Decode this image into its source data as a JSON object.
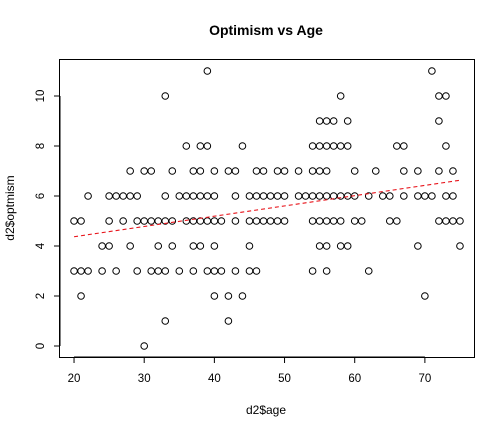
{
  "chart_data": {
    "type": "scatter",
    "title": "Optimism vs Age",
    "xlabel": "d2$age",
    "ylabel": "d2$optmism",
    "xlim": [
      18,
      77
    ],
    "ylim": [
      -0.44,
      11.44
    ],
    "x_ticks": [
      20,
      30,
      40,
      50,
      60,
      70
    ],
    "y_ticks": [
      0,
      2,
      4,
      6,
      8,
      10
    ],
    "grid": false,
    "legend": "none",
    "point_style": "open-circle",
    "point_color": "#000000",
    "points": [
      {
        "x": 20,
        "y": 3
      },
      {
        "x": 20,
        "y": 5
      },
      {
        "x": 21,
        "y": 2
      },
      {
        "x": 21,
        "y": 3
      },
      {
        "x": 21,
        "y": 5
      },
      {
        "x": 22,
        "y": 3
      },
      {
        "x": 22,
        "y": 6
      },
      {
        "x": 24,
        "y": 3
      },
      {
        "x": 24,
        "y": 4
      },
      {
        "x": 25,
        "y": 4
      },
      {
        "x": 25,
        "y": 5
      },
      {
        "x": 25,
        "y": 6
      },
      {
        "x": 26,
        "y": 3
      },
      {
        "x": 26,
        "y": 6
      },
      {
        "x": 27,
        "y": 5
      },
      {
        "x": 27,
        "y": 6
      },
      {
        "x": 28,
        "y": 4
      },
      {
        "x": 28,
        "y": 6
      },
      {
        "x": 28,
        "y": 7
      },
      {
        "x": 29,
        "y": 3
      },
      {
        "x": 29,
        "y": 5
      },
      {
        "x": 29,
        "y": 6
      },
      {
        "x": 30,
        "y": 0
      },
      {
        "x": 30,
        "y": 5
      },
      {
        "x": 30,
        "y": 7
      },
      {
        "x": 31,
        "y": 3
      },
      {
        "x": 31,
        "y": 5
      },
      {
        "x": 31,
        "y": 7
      },
      {
        "x": 32,
        "y": 3
      },
      {
        "x": 32,
        "y": 4
      },
      {
        "x": 32,
        "y": 5
      },
      {
        "x": 33,
        "y": 1
      },
      {
        "x": 33,
        "y": 10
      },
      {
        "x": 33,
        "y": 3
      },
      {
        "x": 33,
        "y": 5
      },
      {
        "x": 33,
        "y": 6
      },
      {
        "x": 34,
        "y": 4
      },
      {
        "x": 34,
        "y": 5
      },
      {
        "x": 34,
        "y": 7
      },
      {
        "x": 35,
        "y": 3
      },
      {
        "x": 35,
        "y": 6
      },
      {
        "x": 36,
        "y": 5
      },
      {
        "x": 36,
        "y": 6
      },
      {
        "x": 36,
        "y": 8
      },
      {
        "x": 37,
        "y": 3
      },
      {
        "x": 37,
        "y": 4
      },
      {
        "x": 37,
        "y": 5
      },
      {
        "x": 37,
        "y": 6
      },
      {
        "x": 37,
        "y": 7
      },
      {
        "x": 38,
        "y": 4
      },
      {
        "x": 38,
        "y": 5
      },
      {
        "x": 38,
        "y": 6
      },
      {
        "x": 38,
        "y": 7
      },
      {
        "x": 38,
        "y": 8
      },
      {
        "x": 39,
        "y": 11
      },
      {
        "x": 39,
        "y": 3
      },
      {
        "x": 39,
        "y": 5
      },
      {
        "x": 39,
        "y": 6
      },
      {
        "x": 39,
        "y": 8
      },
      {
        "x": 40,
        "y": 2
      },
      {
        "x": 40,
        "y": 3
      },
      {
        "x": 40,
        "y": 4
      },
      {
        "x": 40,
        "y": 5
      },
      {
        "x": 40,
        "y": 6
      },
      {
        "x": 40,
        "y": 7
      },
      {
        "x": 41,
        "y": 3
      },
      {
        "x": 41,
        "y": 5
      },
      {
        "x": 42,
        "y": 1
      },
      {
        "x": 42,
        "y": 2
      },
      {
        "x": 42,
        "y": 7
      },
      {
        "x": 43,
        "y": 3
      },
      {
        "x": 43,
        "y": 5
      },
      {
        "x": 43,
        "y": 6
      },
      {
        "x": 43,
        "y": 7
      },
      {
        "x": 44,
        "y": 2
      },
      {
        "x": 44,
        "y": 8
      },
      {
        "x": 45,
        "y": 3
      },
      {
        "x": 45,
        "y": 4
      },
      {
        "x": 45,
        "y": 5
      },
      {
        "x": 45,
        "y": 6
      },
      {
        "x": 46,
        "y": 3
      },
      {
        "x": 46,
        "y": 5
      },
      {
        "x": 46,
        "y": 6
      },
      {
        "x": 46,
        "y": 7
      },
      {
        "x": 47,
        "y": 5
      },
      {
        "x": 47,
        "y": 6
      },
      {
        "x": 47,
        "y": 7
      },
      {
        "x": 48,
        "y": 5
      },
      {
        "x": 48,
        "y": 6
      },
      {
        "x": 49,
        "y": 5
      },
      {
        "x": 49,
        "y": 6
      },
      {
        "x": 49,
        "y": 7
      },
      {
        "x": 50,
        "y": 5
      },
      {
        "x": 50,
        "y": 6
      },
      {
        "x": 50,
        "y": 7
      },
      {
        "x": 52,
        "y": 6
      },
      {
        "x": 52,
        "y": 7
      },
      {
        "x": 53,
        "y": 6
      },
      {
        "x": 54,
        "y": 3
      },
      {
        "x": 54,
        "y": 5
      },
      {
        "x": 54,
        "y": 6
      },
      {
        "x": 54,
        "y": 7
      },
      {
        "x": 54,
        "y": 8
      },
      {
        "x": 55,
        "y": 4
      },
      {
        "x": 55,
        "y": 5
      },
      {
        "x": 55,
        "y": 6
      },
      {
        "x": 55,
        "y": 7
      },
      {
        "x": 55,
        "y": 8
      },
      {
        "x": 55,
        "y": 9
      },
      {
        "x": 56,
        "y": 3
      },
      {
        "x": 56,
        "y": 4
      },
      {
        "x": 56,
        "y": 5
      },
      {
        "x": 56,
        "y": 6
      },
      {
        "x": 56,
        "y": 7
      },
      {
        "x": 56,
        "y": 8
      },
      {
        "x": 56,
        "y": 9
      },
      {
        "x": 57,
        "y": 5
      },
      {
        "x": 57,
        "y": 6
      },
      {
        "x": 57,
        "y": 8
      },
      {
        "x": 57,
        "y": 9
      },
      {
        "x": 58,
        "y": 4
      },
      {
        "x": 58,
        "y": 5
      },
      {
        "x": 58,
        "y": 6
      },
      {
        "x": 58,
        "y": 8
      },
      {
        "x": 58,
        "y": 10
      },
      {
        "x": 59,
        "y": 4
      },
      {
        "x": 59,
        "y": 6
      },
      {
        "x": 59,
        "y": 8
      },
      {
        "x": 59,
        "y": 9
      },
      {
        "x": 60,
        "y": 5
      },
      {
        "x": 60,
        "y": 6
      },
      {
        "x": 60,
        "y": 7
      },
      {
        "x": 61,
        "y": 5
      },
      {
        "x": 62,
        "y": 3
      },
      {
        "x": 62,
        "y": 6
      },
      {
        "x": 63,
        "y": 7
      },
      {
        "x": 64,
        "y": 6
      },
      {
        "x": 65,
        "y": 5
      },
      {
        "x": 65,
        "y": 6
      },
      {
        "x": 66,
        "y": 5
      },
      {
        "x": 66,
        "y": 8
      },
      {
        "x": 67,
        "y": 6
      },
      {
        "x": 67,
        "y": 7
      },
      {
        "x": 67,
        "y": 8
      },
      {
        "x": 69,
        "y": 4
      },
      {
        "x": 69,
        "y": 6
      },
      {
        "x": 69,
        "y": 7
      },
      {
        "x": 70,
        "y": 2
      },
      {
        "x": 70,
        "y": 6
      },
      {
        "x": 71,
        "y": 11
      },
      {
        "x": 71,
        "y": 6
      },
      {
        "x": 72,
        "y": 5
      },
      {
        "x": 72,
        "y": 7
      },
      {
        "x": 72,
        "y": 9
      },
      {
        "x": 72,
        "y": 10
      },
      {
        "x": 73,
        "y": 5
      },
      {
        "x": 73,
        "y": 6
      },
      {
        "x": 73,
        "y": 8
      },
      {
        "x": 73,
        "y": 10
      },
      {
        "x": 74,
        "y": 5
      },
      {
        "x": 74,
        "y": 6
      },
      {
        "x": 74,
        "y": 7
      },
      {
        "x": 75,
        "y": 4
      },
      {
        "x": 75,
        "y": 5
      }
    ],
    "trendline": {
      "style": "dashed",
      "color": "#e8141b",
      "from": {
        "x": 20,
        "y": 4.37
      },
      "to": {
        "x": 75,
        "y": 6.63
      }
    }
  }
}
